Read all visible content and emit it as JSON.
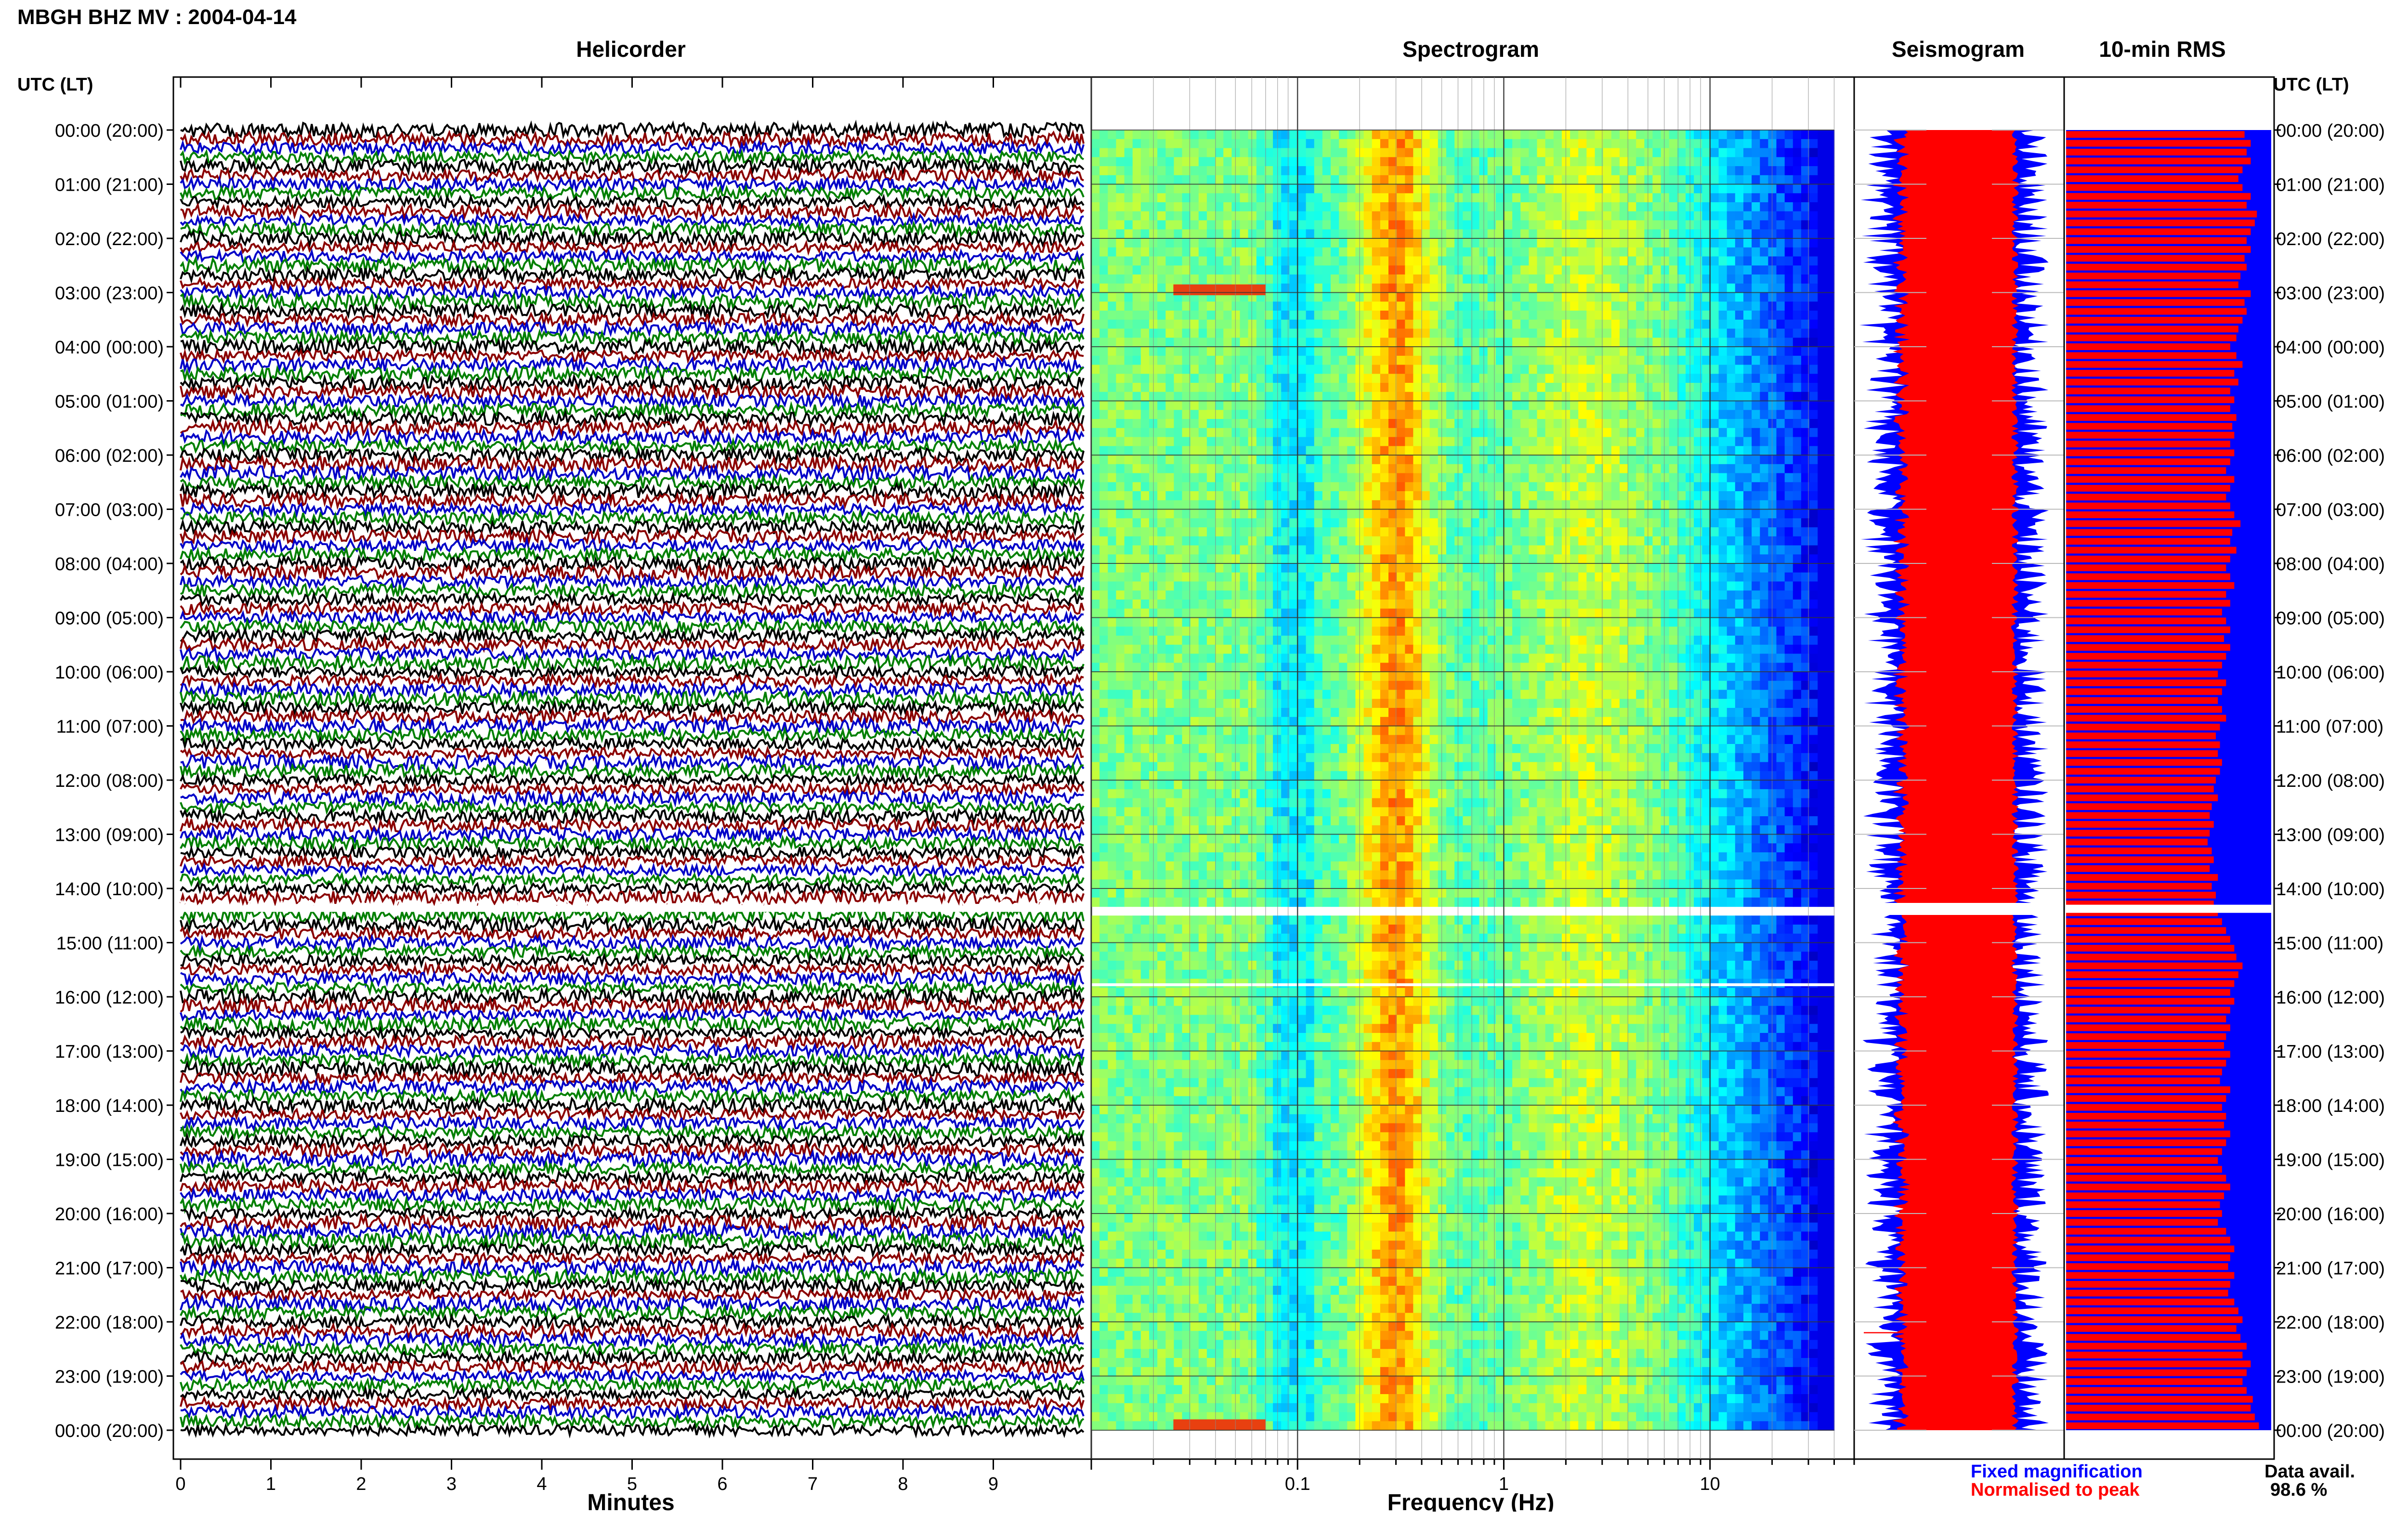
{
  "header": {
    "title": "MBGH BHZ MV : 2004-04-14"
  },
  "panels": {
    "helicorder": "Helicorder",
    "spectrogram": "Spectrogram",
    "seismogram": "Seismogram",
    "rms": "10-min RMS"
  },
  "axis": {
    "utc_left": "UTC (LT)",
    "utc_right": "UTC (LT)",
    "minutes_label": "Minutes",
    "frequency_label": "Frequency (Hz)"
  },
  "legend": {
    "fixed": "Fixed magnification",
    "normalised": "Normalised to peak",
    "availability_label": "Data avail.",
    "availability_value": "98.6 %"
  },
  "colors": {
    "helicorder_traces": [
      "#000000",
      "#8b0000",
      "#0000c8",
      "#008000"
    ],
    "fixed_magnification": "#0000ff",
    "normalised_to_peak": "#ff0000",
    "gap": "#ffffff"
  },
  "chart_data": [
    {
      "type": "line",
      "name": "Helicorder",
      "x_label": "Minutes",
      "xlim": [
        0,
        10
      ],
      "x_ticks": [
        "0",
        "1",
        "2",
        "3",
        "4",
        "5",
        "6",
        "7",
        "8",
        "9"
      ],
      "y_ticks": [
        "00:00 (20:00)",
        "01:00 (21:00)",
        "02:00 (22:00)",
        "03:00 (23:00)",
        "04:00 (00:00)",
        "05:00 (01:00)",
        "06:00 (02:00)",
        "07:00 (03:00)",
        "08:00 (04:00)",
        "09:00 (05:00)",
        "10:00 (06:00)",
        "11:00 (07:00)",
        "12:00 (08:00)",
        "13:00 (09:00)",
        "14:00 (10:00)",
        "15:00 (11:00)",
        "16:00 (12:00)",
        "17:00 (13:00)",
        "18:00 (14:00)",
        "19:00 (15:00)",
        "20:00 (16:00)",
        "21:00 (17:00)",
        "22:00 (18:00)",
        "23:00 (19:00)",
        "00:00 (20:00)"
      ],
      "rows_per_hour": 6,
      "gap_hours": [
        14.3,
        14.45
      ]
    },
    {
      "type": "heatmap",
      "name": "Spectrogram",
      "x_label": "Frequency (Hz)",
      "x_scale": "log",
      "xlim": [
        0.01,
        50
      ],
      "x_ticks": [
        "0.1",
        "1",
        "10"
      ],
      "peak_band_hz": [
        0.25,
        0.4
      ],
      "gap_hours": [
        14.3,
        14.45
      ]
    },
    {
      "type": "area",
      "name": "Seismogram",
      "series": [
        "Fixed magnification",
        "Normalised to peak"
      ],
      "gap_hours": [
        14.3,
        14.45
      ]
    },
    {
      "type": "bar",
      "name": "10-min RMS",
      "series": [
        "Normalised to peak",
        "Fixed magnification"
      ],
      "rms_fraction": [
        0.87,
        0.9,
        0.88,
        0.9,
        0.86,
        0.84,
        0.86,
        0.9,
        0.88,
        0.93,
        0.92,
        0.9,
        0.88,
        0.9,
        0.87,
        0.88,
        0.85,
        0.84,
        0.9,
        0.87,
        0.88,
        0.86,
        0.84,
        0.83,
        0.8,
        0.83,
        0.86,
        0.82,
        0.84,
        0.8,
        0.82,
        0.8,
        0.83,
        0.81,
        0.82,
        0.8,
        0.82,
        0.8,
        0.78,
        0.82,
        0.8,
        0.78,
        0.8,
        0.82,
        0.85,
        0.81,
        0.8,
        0.83,
        0.8,
        0.78,
        0.8,
        0.82,
        0.78,
        0.8,
        0.76,
        0.78,
        0.8,
        0.77,
        0.8,
        0.78,
        0.76,
        0.74,
        0.78,
        0.76,
        0.74,
        0.76,
        0.78,
        0.75,
        0.73,
        0.75,
        0.74,
        0.76,
        0.75,
        0.73,
        0.72,
        0.74,
        0.71,
        0.7,
        0.72,
        0.7,
        0.69,
        0.71,
        0.72,
        0.7,
        0.74,
        0.71,
        0.73,
        0.72,
        0.74,
        0.76,
        0.78,
        0.8,
        0.82,
        0.83,
        0.86,
        0.84,
        0.82,
        0.8,
        0.82,
        0.8,
        0.78,
        0.8,
        0.78,
        0.77,
        0.8,
        0.78,
        0.76,
        0.75,
        0.8,
        0.78,
        0.76,
        0.78,
        0.77,
        0.8,
        0.78,
        0.76,
        0.74,
        0.76,
        0.78,
        0.8,
        0.77,
        0.75,
        0.76,
        0.74,
        0.78,
        0.8,
        0.82,
        0.8,
        0.79,
        0.82,
        0.8,
        0.79,
        0.82,
        0.84,
        0.86,
        0.83,
        0.85,
        0.88,
        0.86,
        0.9,
        0.88,
        0.86,
        0.88,
        0.91,
        0.9,
        0.92,
        0.94
      ],
      "gap_hours": [
        14.3,
        14.45
      ]
    }
  ]
}
